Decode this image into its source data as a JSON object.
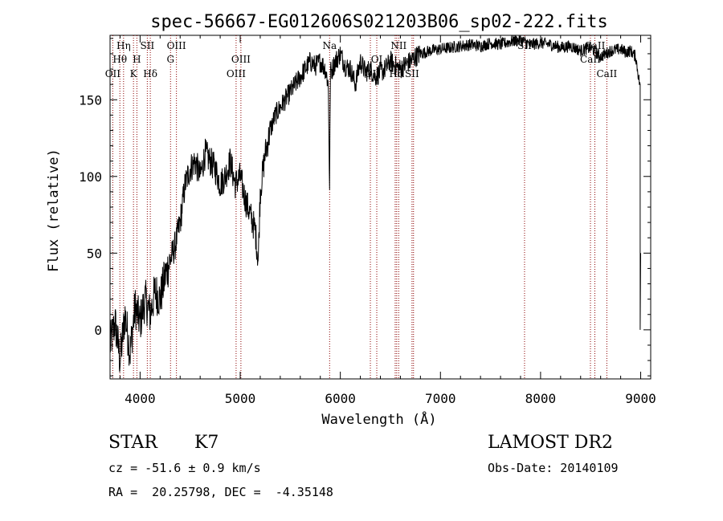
{
  "chart_data": {
    "type": "line",
    "title": "spec-56667-EG012606S021203B06_sp02-222.fits",
    "xlabel": "Wavelength (Å)",
    "ylabel": "Flux (relative)",
    "xlim": [
      3700,
      9100
    ],
    "ylim": [
      -32,
      192
    ],
    "xticks": [
      4000,
      5000,
      6000,
      7000,
      8000,
      9000
    ],
    "yticks": [
      0,
      50,
      100,
      150
    ],
    "grid": false,
    "series": [
      {
        "x": [
          3700,
          3750,
          3800,
          3850,
          3900,
          3950,
          4000,
          4050,
          4100,
          4150,
          4200,
          4250,
          4300,
          4350,
          4400,
          4450,
          4500,
          4550,
          4600,
          4650,
          4700,
          4750,
          4800,
          4850,
          4900,
          4950,
          5000,
          5050,
          5100,
          5150,
          5180,
          5200,
          5250,
          5300,
          5350,
          5400,
          5450,
          5500,
          5550,
          5600,
          5650,
          5700,
          5750,
          5800,
          5850,
          5880,
          5893,
          5900,
          5920,
          5950,
          6000,
          6050,
          6100,
          6150,
          6200,
          6250,
          6300,
          6350,
          6400,
          6450,
          6500,
          6550,
          6600,
          6650,
          6700,
          6750,
          6800,
          6900,
          7000,
          7100,
          7200,
          7300,
          7400,
          7500,
          7600,
          7700,
          7800,
          7900,
          8000,
          8100,
          8200,
          8300,
          8400,
          8500,
          8600,
          8700,
          8800,
          8850,
          8900,
          8950,
          8990,
          8995,
          9000
        ],
        "y": [
          -10,
          5,
          -20,
          10,
          -15,
          15,
          5,
          20,
          10,
          25,
          20,
          35,
          45,
          55,
          70,
          95,
          105,
          110,
          100,
          115,
          110,
          105,
          95,
          100,
          110,
          95,
          100,
          85,
          75,
          65,
          45,
          90,
          115,
          130,
          140,
          145,
          150,
          155,
          160,
          165,
          170,
          175,
          172,
          175,
          170,
          160,
          90,
          168,
          170,
          175,
          180,
          172,
          170,
          160,
          175,
          168,
          170,
          165,
          168,
          170,
          175,
          172,
          170,
          173,
          175,
          178,
          180,
          182,
          183,
          184,
          185,
          186,
          185,
          187,
          186,
          188,
          189,
          186,
          187,
          186,
          184,
          185,
          182,
          184,
          178,
          182,
          183,
          181,
          182,
          178,
          160,
          0,
          50
        ]
      }
    ],
    "lines": [
      {
        "name": "OII",
        "x": 3727
      },
      {
        "name": "Hθ",
        "x": 3798
      },
      {
        "name": "Hη",
        "x": 3835
      },
      {
        "name": "K",
        "x": 3934
      },
      {
        "name": "H",
        "x": 3968
      },
      {
        "name": "SII",
        "x": 4072
      },
      {
        "name": "Hδ",
        "x": 4102
      },
      {
        "name": "G",
        "x": 4304
      },
      {
        "name": "OIII",
        "x": 4363
      },
      {
        "name": "OIII",
        "x": 4959
      },
      {
        "name": "OIII",
        "x": 5007
      },
      {
        "name": "Na",
        "x": 5893
      },
      {
        "name": "OI",
        "x": 6300
      },
      {
        "name": "OI",
        "x": 6364
      },
      {
        "name": "NII",
        "x": 6548
      },
      {
        "name": "Hα",
        "x": 6563
      },
      {
        "name": "NII",
        "x": 6583
      },
      {
        "name": "SII",
        "x": 6716
      },
      {
        "name": "SII",
        "x": 6731
      },
      {
        "name": "SII",
        "x": 7840
      },
      {
        "name": "CaII",
        "x": 8498
      },
      {
        "name": "CaII",
        "x": 8542
      },
      {
        "name": "CaII",
        "x": 8662
      }
    ],
    "line_labels": [
      {
        "text": "Hη",
        "x": 3835,
        "row": 0
      },
      {
        "text": "Hθ",
        "x": 3798,
        "row": 1
      },
      {
        "text": "OII",
        "x": 3727,
        "row": 2
      },
      {
        "text": "H",
        "x": 3968,
        "row": 1
      },
      {
        "text": "K",
        "x": 3934,
        "row": 2
      },
      {
        "text": "SII",
        "x": 4072,
        "row": 0
      },
      {
        "text": "Hδ",
        "x": 4102,
        "row": 2
      },
      {
        "text": "OIII",
        "x": 4363,
        "row": 0
      },
      {
        "text": "G",
        "x": 4304,
        "row": 1
      },
      {
        "text": "OIII",
        "x": 5007,
        "row": 1
      },
      {
        "text": "OIII",
        "x": 4959,
        "row": 2
      },
      {
        "text": "Na",
        "x": 5893,
        "row": 0
      },
      {
        "text": "OI",
        "x": 6364,
        "row": 1
      },
      {
        "text": "OI",
        "x": 6300,
        "row": 2
      },
      {
        "text": "NII",
        "x": 6583,
        "row": 0
      },
      {
        "text": "Hα",
        "x": 6563,
        "row": 2
      },
      {
        "text": "SII",
        "x": 6716,
        "row": 2
      },
      {
        "text": "SII",
        "x": 7840,
        "row": 0
      },
      {
        "text": "CaII",
        "x": 8542,
        "row": 0
      },
      {
        "text": "CaII",
        "x": 8498,
        "row": 1
      },
      {
        "text": "CaII",
        "x": 8662,
        "row": 2
      }
    ],
    "colors": {
      "spectrum": "#000000",
      "lines": "#8b0000",
      "axes": "#000000"
    }
  },
  "info": {
    "class": "STAR",
    "subclass": "K7",
    "survey": "LAMOST DR2",
    "cz": "cz = -51.6 ± 0.9 km/s",
    "obs_date": "Obs-Date: 20140109",
    "coords": "RA =  20.25798, DEC =  -4.35148"
  }
}
